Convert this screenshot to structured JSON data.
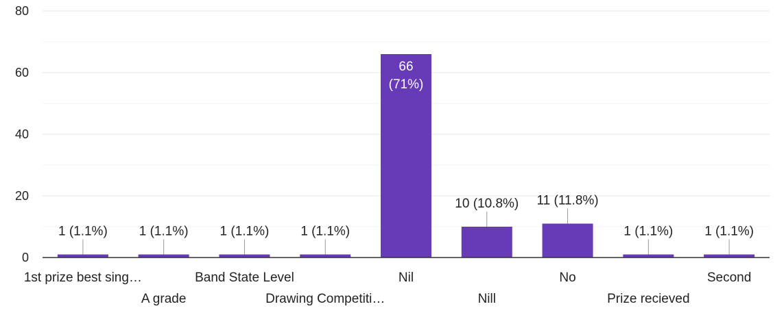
{
  "chart_data": {
    "type": "bar",
    "title": "",
    "xlabel": "",
    "ylabel": "",
    "ylim": [
      0,
      80
    ],
    "yticks": [
      0,
      20,
      40,
      60,
      80
    ],
    "grid": true,
    "legend": "none",
    "categories": [
      "1st prize best sing…",
      "A grade",
      "Band State Level",
      "Drawing Competiti…",
      "Nil",
      "Nill",
      "No",
      "Prize recieved",
      "Second"
    ],
    "values": [
      1,
      1,
      1,
      1,
      66,
      10,
      11,
      1,
      1
    ],
    "data_labels": [
      "1 (1.1%)",
      "1 (1.1%)",
      "1 (1.1%)",
      "1 (1.1%)",
      "66 (71%)",
      "10 (10.8%)",
      "11 (11.8%)",
      "1 (1.1%)",
      "1 (1.1%)"
    ],
    "colors": {
      "bar": "#673ab7",
      "grid": "#e6e6e6",
      "axis": "#333333",
      "text": "#222222",
      "leader": "#999999",
      "inside_label": "#ffffff"
    }
  }
}
